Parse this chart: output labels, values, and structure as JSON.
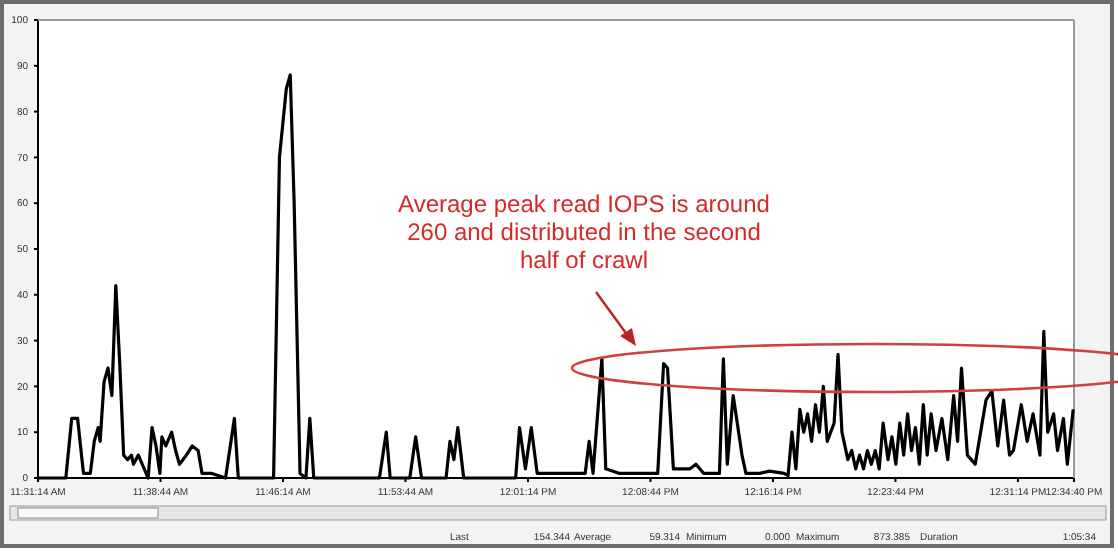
{
  "chart_data": {
    "type": "line",
    "x": [
      11.521,
      11.549,
      11.555,
      11.561,
      11.567,
      11.574,
      11.578,
      11.582,
      11.584,
      11.588,
      11.592,
      11.596,
      11.6,
      11.604,
      11.608,
      11.612,
      11.616,
      11.618,
      11.623,
      11.629,
      11.633,
      11.637,
      11.641,
      11.645,
      11.647,
      11.651,
      11.657,
      11.661,
      11.665,
      11.672,
      11.678,
      11.684,
      11.688,
      11.698,
      11.712,
      11.721,
      11.725,
      11.761,
      11.767,
      11.774,
      11.778,
      11.782,
      11.788,
      11.794,
      11.798,
      11.802,
      11.869,
      11.876,
      11.88,
      11.9,
      11.906,
      11.912,
      11.937,
      11.941,
      11.945,
      11.949,
      11.955,
      12.008,
      12.012,
      12.018,
      12.024,
      12.03,
      12.079,
      12.083,
      12.087,
      12.096,
      12.1,
      12.114,
      12.135,
      12.153,
      12.159,
      12.163,
      12.169,
      12.186,
      12.192,
      12.2,
      12.216,
      12.22,
      12.224,
      12.23,
      12.239,
      12.243,
      12.257,
      12.267,
      12.282,
      12.286,
      12.29,
      12.294,
      12.298,
      12.302,
      12.306,
      12.31,
      12.314,
      12.318,
      12.322,
      12.326,
      12.333,
      12.337,
      12.341,
      12.347,
      12.351,
      12.355,
      12.359,
      12.363,
      12.367,
      12.371,
      12.375,
      12.379,
      12.383,
      12.388,
      12.392,
      12.396,
      12.4,
      12.404,
      12.408,
      12.412,
      12.416,
      12.42,
      12.424,
      12.428,
      12.432,
      12.437,
      12.443,
      12.449,
      12.455,
      12.459,
      12.463,
      12.469,
      12.477,
      12.488,
      12.494,
      12.5,
      12.506,
      12.512,
      12.516,
      12.524,
      12.53,
      12.536,
      12.543,
      12.547,
      12.551,
      12.557,
      12.561,
      12.567,
      12.571,
      12.577
    ],
    "series": [
      {
        "color": "#000000",
        "values": [
          0,
          0,
          13,
          13,
          1,
          1,
          8,
          11,
          8,
          21,
          24,
          18,
          42,
          25,
          5,
          4,
          5,
          3,
          5,
          2,
          0,
          11,
          7,
          1,
          9,
          7,
          10,
          6,
          3,
          5,
          7,
          6,
          1,
          1,
          0,
          13,
          0,
          0,
          70,
          85,
          88,
          60,
          1,
          0,
          13,
          0,
          0,
          10,
          0,
          0,
          9,
          0,
          0,
          8,
          4,
          11,
          0,
          0,
          11,
          2,
          11,
          1,
          1,
          8,
          1,
          26,
          2,
          1,
          1,
          1,
          25,
          24,
          2,
          2,
          3,
          1,
          1,
          26,
          3,
          18,
          5,
          1,
          1,
          1.5,
          1,
          0.5,
          10,
          2,
          15,
          10,
          14,
          8,
          16,
          10,
          20,
          8,
          12,
          27,
          10,
          4,
          6,
          2,
          5,
          2,
          6,
          3,
          6,
          2,
          12,
          4,
          9,
          3,
          12,
          5,
          14,
          6,
          11,
          3,
          16,
          5,
          14,
          6,
          13,
          4,
          18,
          8,
          24,
          5,
          3,
          17,
          19,
          7,
          17,
          5,
          6,
          16,
          8,
          14,
          5,
          32,
          10,
          14,
          6,
          13,
          3,
          15
        ]
      }
    ],
    "xlim": [
      11.5206,
      12.5778
    ],
    "xticks": [
      {
        "value": 11.5206,
        "label": "11:31:14 AM"
      },
      {
        "value": 11.6456,
        "label": "11:38:44 AM"
      },
      {
        "value": 11.7706,
        "label": "11:46:14 AM"
      },
      {
        "value": 11.8956,
        "label": "11:53:44 AM"
      },
      {
        "value": 12.0206,
        "label": "12:01:14 PM"
      },
      {
        "value": 12.1456,
        "label": "12:08:44 PM"
      },
      {
        "value": 12.2706,
        "label": "12:16:14 PM"
      },
      {
        "value": 12.3956,
        "label": "12:23:44 PM"
      },
      {
        "value": 12.5206,
        "label": "12:31:14 PM"
      },
      {
        "value": 12.5778,
        "label": "12:34:40 PM"
      }
    ],
    "ylim": [
      0,
      100
    ],
    "yticks": [
      0,
      10,
      20,
      30,
      40,
      50,
      60,
      70,
      80,
      90,
      100
    ],
    "grid": false,
    "marker": "none",
    "line_style": "solid",
    "annotations": [
      "Average peak read IOPS is around 260 and distributed in the second half of crawl",
      "Last",
      "154.344",
      "Average",
      "59.314",
      "Minimum",
      "0.000",
      "Maximum",
      "873.385",
      "Duration",
      "1:05:34"
    ]
  }
}
